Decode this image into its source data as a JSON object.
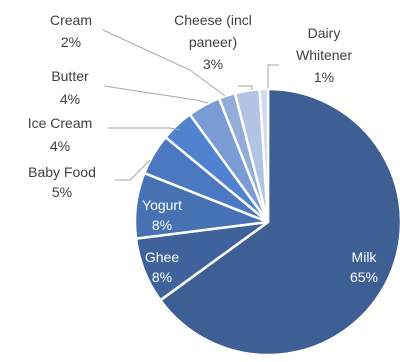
{
  "chart_data": {
    "type": "pie",
    "title": "",
    "start_angle_deg": 0,
    "direction": "clockwise",
    "slices": [
      {
        "name": "Milk",
        "value": 65,
        "label": "65%",
        "color": "#3e5f93",
        "label_lines": [
          "Milk",
          "65%"
        ],
        "label_side": "inside"
      },
      {
        "name": "Ghee",
        "value": 8,
        "label": "8%",
        "color": "#3f629c",
        "label_lines": [
          "Ghee",
          "8%"
        ],
        "label_side": "inside"
      },
      {
        "name": "Yogurt",
        "value": 8,
        "label": "8%",
        "color": "#4672b4",
        "label_lines": [
          "Yogurt",
          "8%"
        ],
        "label_side": "inside"
      },
      {
        "name": "Baby Food",
        "value": 5,
        "label": "5%",
        "color": "#4a79c1",
        "label_lines": [
          "Baby Food",
          "5%"
        ],
        "label_side": "outside"
      },
      {
        "name": "Ice Cream",
        "value": 4,
        "label": "4%",
        "color": "#4f82cf",
        "label_lines": [
          "Ice Cream",
          "4%"
        ],
        "label_side": "outside"
      },
      {
        "name": "Butter",
        "value": 4,
        "label": "4%",
        "color": "#7a9bd3",
        "label_lines": [
          "Butter",
          "4%"
        ],
        "label_side": "outside"
      },
      {
        "name": "Cream",
        "value": 2,
        "label": "2%",
        "color": "#93add9",
        "label_lines": [
          "Cream",
          "2%"
        ],
        "label_side": "outside"
      },
      {
        "name": "Cheese (incl paneer)",
        "value": 3,
        "label": "3%",
        "color": "#b2c4e3",
        "label_lines": [
          "Cheese (incl",
          "paneer)",
          "3%"
        ],
        "label_side": "outside"
      },
      {
        "name": "Dairy Whitener",
        "value": 1,
        "label": "1%",
        "color": "#cdd9ee",
        "label_lines": [
          "Dairy",
          "Whitener",
          "1%"
        ],
        "label_side": "outside"
      }
    ]
  }
}
